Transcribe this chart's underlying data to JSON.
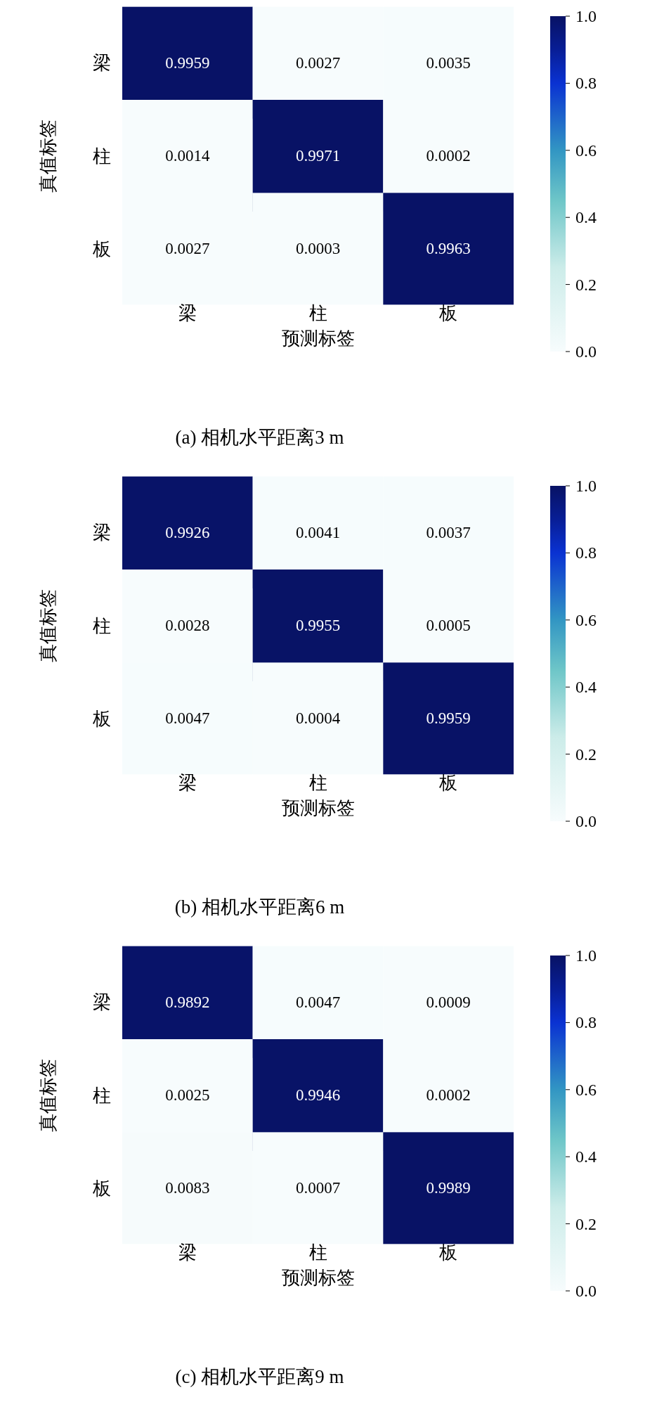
{
  "chart_data": [
    {
      "type": "heatmap",
      "title": "(a) 相机水平距离3 m",
      "xlabel": "预测标签",
      "ylabel": "真值标签",
      "categories": [
        "梁",
        "柱",
        "板"
      ],
      "y_categories": [
        "梁",
        "柱",
        "板"
      ],
      "cells": [
        [
          0.9959,
          0.0027,
          0.0035
        ],
        [
          0.0014,
          0.9971,
          0.0002
        ],
        [
          0.0027,
          0.0003,
          0.9963
        ]
      ],
      "data_labels": true,
      "clim": [
        0,
        1
      ],
      "cticks": [
        {
          "value": 0,
          "label": "0.0"
        },
        {
          "value": 0.2,
          "label": "0.2"
        },
        {
          "value": 0.4,
          "label": "0.4"
        },
        {
          "value": 0.6,
          "label": "0.6"
        },
        {
          "value": 0.8,
          "label": "0.8"
        },
        {
          "value": 1,
          "label": "1.0"
        }
      ]
    },
    {
      "type": "heatmap",
      "title": "(b) 相机水平距离6 m",
      "xlabel": "预测标签",
      "ylabel": "真值标签",
      "categories": [
        "梁",
        "柱",
        "板"
      ],
      "y_categories": [
        "梁",
        "柱",
        "板"
      ],
      "cells": [
        [
          0.9926,
          0.0041,
          0.0037
        ],
        [
          0.0028,
          0.9955,
          0.0005
        ],
        [
          0.0047,
          0.0004,
          0.9959
        ]
      ],
      "data_labels": true,
      "clim": [
        0,
        1
      ],
      "cticks": [
        {
          "value": 0,
          "label": "0.0"
        },
        {
          "value": 0.2,
          "label": "0.2"
        },
        {
          "value": 0.4,
          "label": "0.4"
        },
        {
          "value": 0.6,
          "label": "0.6"
        },
        {
          "value": 0.8,
          "label": "0.8"
        },
        {
          "value": 1,
          "label": "1.0"
        }
      ]
    },
    {
      "type": "heatmap",
      "title": "(c) 相机水平距离9 m",
      "xlabel": "预测标签",
      "ylabel": "真值标签",
      "categories": [
        "梁",
        "柱",
        "板"
      ],
      "y_categories": [
        "梁",
        "柱",
        "板"
      ],
      "cells": [
        [
          0.9892,
          0.0047,
          0.0009
        ],
        [
          0.0025,
          0.9946,
          0.0002
        ],
        [
          0.0083,
          0.0007,
          0.9989
        ]
      ],
      "data_labels": true,
      "clim": [
        0,
        1
      ],
      "cticks": [
        {
          "value": 0,
          "label": "0.0"
        },
        {
          "value": 0.2,
          "label": "0.2"
        },
        {
          "value": 0.4,
          "label": "0.4"
        },
        {
          "value": 0.6,
          "label": "0.6"
        },
        {
          "value": 0.8,
          "label": "0.8"
        },
        {
          "value": 1,
          "label": "1.0"
        }
      ]
    }
  ]
}
